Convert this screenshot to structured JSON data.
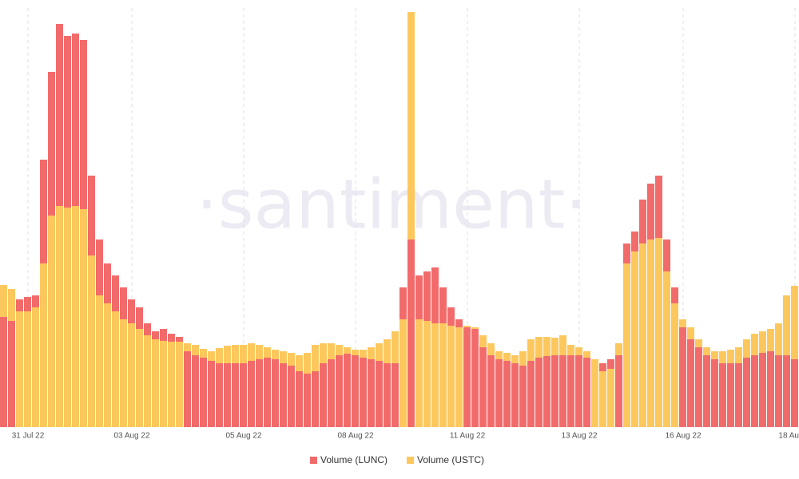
{
  "chart_data": {
    "type": "bar",
    "watermark": "·santiment·",
    "categories": [
      null,
      null,
      null,
      "31 Jul 22",
      null,
      null,
      null,
      null,
      null,
      null,
      null,
      null,
      null,
      null,
      null,
      null,
      "03 Aug 22",
      null,
      null,
      null,
      null,
      null,
      null,
      null,
      null,
      null,
      null,
      null,
      null,
      null,
      "05 Aug 22",
      null,
      null,
      null,
      null,
      null,
      null,
      null,
      null,
      null,
      null,
      null,
      null,
      null,
      "08 Aug 22",
      null,
      null,
      null,
      null,
      null,
      null,
      null,
      null,
      null,
      null,
      null,
      null,
      null,
      "11 Aug 22",
      null,
      null,
      null,
      null,
      null,
      null,
      null,
      null,
      null,
      null,
      null,
      null,
      null,
      "13 Aug 22",
      null,
      null,
      null,
      null,
      null,
      null,
      null,
      null,
      null,
      null,
      null,
      null,
      "16 Aug 22",
      null,
      null,
      null,
      null,
      null,
      null,
      null,
      null,
      null,
      null,
      null,
      null,
      null,
      "18 Au"
    ],
    "series": [
      {
        "name": "Volume (LUNC)",
        "color": "#f26b6b",
        "values": [
          138,
          133,
          160,
          163,
          165,
          335,
          445,
          505,
          490,
          493,
          485,
          315,
          235,
          205,
          190,
          175,
          160,
          150,
          130,
          120,
          123,
          117,
          113,
          95,
          90,
          87,
          83,
          80,
          80,
          80,
          80,
          83,
          85,
          87,
          85,
          80,
          77,
          70,
          67,
          70,
          80,
          85,
          90,
          92,
          90,
          87,
          85,
          83,
          80,
          80,
          175,
          235,
          190,
          195,
          200,
          175,
          150,
          135,
          125,
          123,
          100,
          90,
          85,
          83,
          80,
          77,
          83,
          87,
          89,
          90,
          90,
          90,
          90,
          87,
          85,
          80,
          85,
          90,
          230,
          245,
          285,
          305,
          315,
          235,
          175,
          125,
          110,
          100,
          90,
          85,
          80,
          80,
          80,
          87,
          90,
          93,
          95,
          90,
          90,
          85
        ]
      },
      {
        "name": "Volume (USTC)",
        "color": "#fcc85e",
        "values": [
          178,
          173,
          145,
          145,
          150,
          205,
          265,
          277,
          275,
          277,
          273,
          215,
          165,
          155,
          145,
          135,
          130,
          123,
          115,
          110,
          108,
          107,
          107,
          105,
          103,
          98,
          95,
          99,
          102,
          103,
          103,
          105,
          103,
          100,
          97,
          95,
          93,
          90,
          93,
          103,
          105,
          105,
          103,
          100,
          97,
          97,
          100,
          105,
          110,
          120,
          135,
          520,
          135,
          133,
          130,
          130,
          127,
          125,
          127,
          125,
          115,
          105,
          95,
          93,
          90,
          95,
          110,
          113,
          113,
          112,
          115,
          103,
          100,
          95,
          85,
          70,
          73,
          105,
          205,
          220,
          230,
          235,
          237,
          195,
          155,
          135,
          125,
          110,
          100,
          95,
          95,
          97,
          100,
          110,
          117,
          120,
          123,
          130,
          165,
          177
        ]
      }
    ],
    "ylim": [
      0,
      525
    ],
    "grid": true,
    "legend": "bottom"
  }
}
